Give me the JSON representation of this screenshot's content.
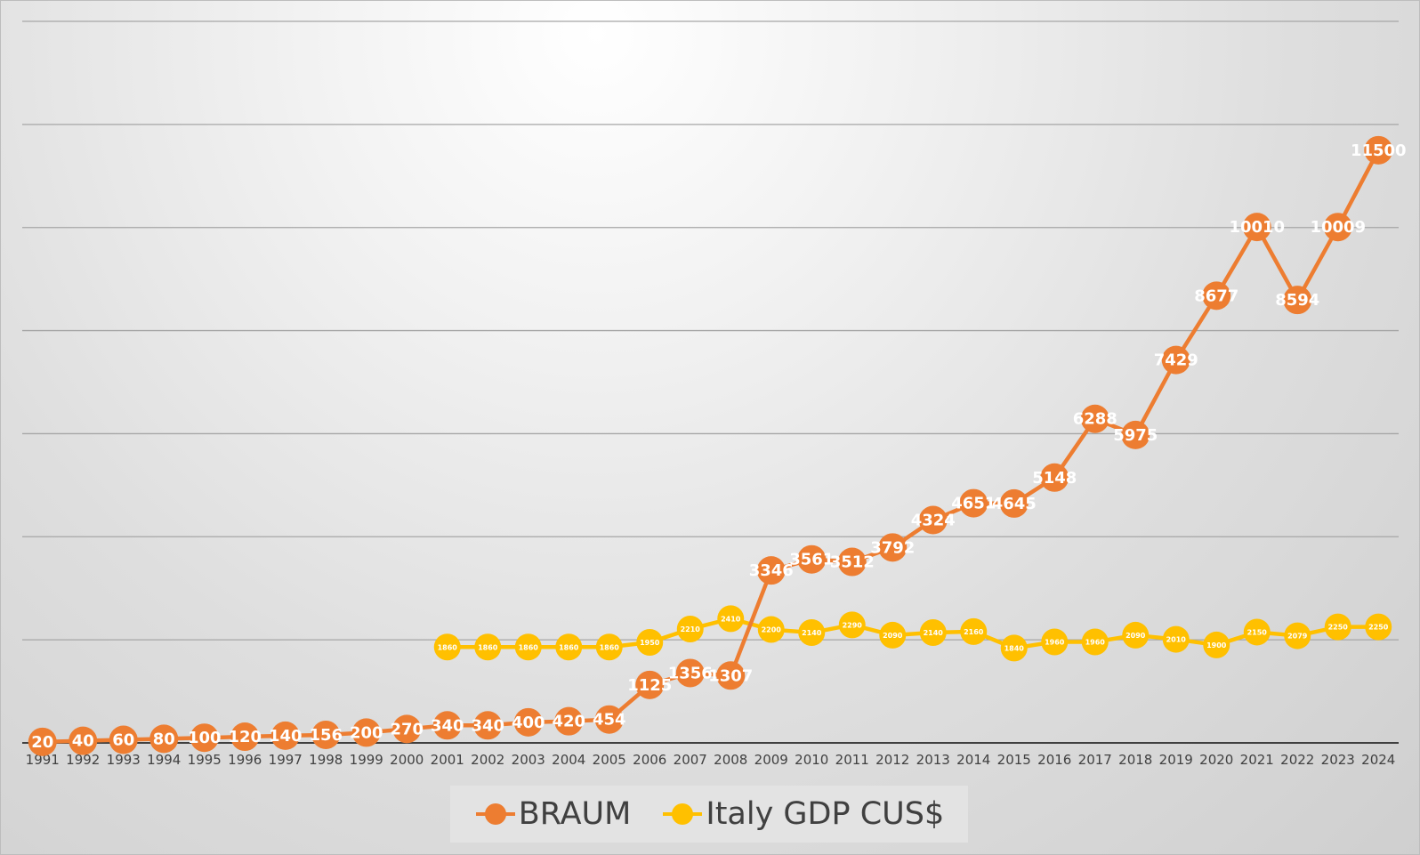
{
  "chart_data": {
    "type": "line",
    "title": "",
    "xlabel": "",
    "ylabel": "",
    "ylim": [
      0,
      14000
    ],
    "grid": true,
    "y_axis_labels_shown": false,
    "legend_position": "bottom",
    "categories": [
      "1991",
      "1992",
      "1993",
      "1994",
      "1995",
      "1996",
      "1997",
      "1998",
      "1999",
      "2000",
      "2001",
      "2002",
      "2003",
      "2004",
      "2005",
      "2006",
      "2007",
      "2008",
      "2009",
      "2010",
      "2011",
      "2012",
      "2013",
      "2014",
      "2015",
      "2016",
      "2017",
      "2018",
      "2019",
      "2020",
      "2021",
      "2022",
      "2023",
      "2024"
    ],
    "series": [
      {
        "name": "BRAUM",
        "color": "#ED7D31",
        "values": [
          20,
          40,
          60,
          80,
          100,
          120,
          140,
          156,
          200,
          270,
          340,
          340,
          400,
          420,
          454,
          1125,
          1356,
          1307,
          3346,
          3561,
          3512,
          3792,
          4324,
          4651,
          4645,
          5148,
          6288,
          5975,
          7429,
          8677,
          10010,
          8594,
          10009,
          11500
        ]
      },
      {
        "name": "Italy GDP CUS$",
        "color": "#FFC000",
        "values": [
          null,
          null,
          null,
          null,
          null,
          null,
          null,
          null,
          null,
          null,
          1860,
          1860,
          1860,
          1860,
          1860,
          1950,
          2210,
          2410,
          2200,
          2140,
          2290,
          2090,
          2140,
          2160,
          1840,
          1960,
          1960,
          2090,
          2010,
          1900,
          2150,
          2079,
          2250,
          2250
        ]
      }
    ]
  }
}
